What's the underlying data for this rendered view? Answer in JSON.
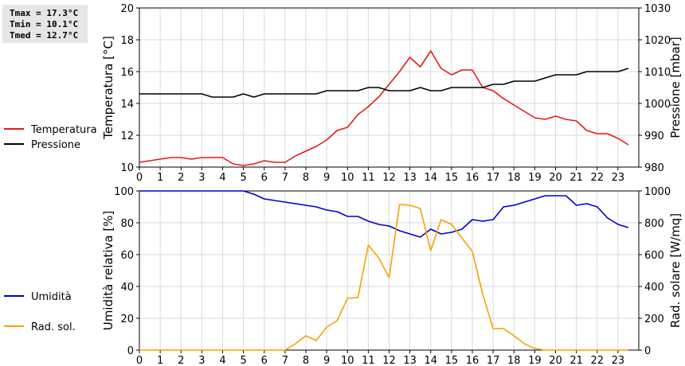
{
  "stats": {
    "tmax": "Tmax = 17.3°C",
    "tmin": "Tmin = 10.1°C",
    "tmed": "Tmed = 12.7°C"
  },
  "chart_data": [
    {
      "type": "line",
      "ylabel": "Temperatura [°C]",
      "y2label": "Pressione [mbar]",
      "xlim": [
        0,
        24
      ],
      "ylim": [
        10,
        20
      ],
      "y2lim": [
        980,
        1030
      ],
      "x_tick_labels": [
        "0",
        "1",
        "2",
        "3",
        "4",
        "5",
        "6",
        "7",
        "8",
        "9",
        "10",
        "11",
        "12",
        "13",
        "14",
        "15",
        "16",
        "17",
        "18",
        "19",
        "20",
        "21",
        "22",
        "23"
      ],
      "y_tick_labels": [
        "10",
        "12",
        "14",
        "16",
        "18",
        "20"
      ],
      "y2_tick_labels": [
        "980",
        "990",
        "1000",
        "1010",
        "1020",
        "1030"
      ],
      "grid": true,
      "legend": "left",
      "series": [
        {
          "name": "Temperatura",
          "axis": "left",
          "color": "#e31a1c",
          "x": [
            0,
            0.5,
            1,
            1.5,
            2,
            2.5,
            3,
            3.5,
            4,
            4.5,
            5,
            5.5,
            6,
            6.5,
            7,
            7.5,
            8,
            8.5,
            9,
            9.5,
            10,
            10.5,
            11,
            11.5,
            12,
            12.5,
            13,
            13.5,
            14,
            14.5,
            15,
            15.5,
            16,
            16.5,
            17,
            17.5,
            18,
            18.5,
            19,
            19.5,
            20,
            20.5,
            21,
            21.5,
            22,
            22.5,
            23,
            23.5
          ],
          "values": [
            10.3,
            10.4,
            10.5,
            10.6,
            10.6,
            10.5,
            10.6,
            10.6,
            10.6,
            10.2,
            10.1,
            10.2,
            10.4,
            10.3,
            10.3,
            10.7,
            11.0,
            11.3,
            11.7,
            12.3,
            12.5,
            13.3,
            13.8,
            14.4,
            15.2,
            16.0,
            16.9,
            16.3,
            17.3,
            16.2,
            15.8,
            16.1,
            16.1,
            15.0,
            14.8,
            14.3,
            13.9,
            13.5,
            13.1,
            13.0,
            13.2,
            13.0,
            12.9,
            12.3,
            12.1,
            12.1,
            11.8,
            11.4
          ]
        },
        {
          "name": "Pressione",
          "axis": "right",
          "color": "#000000",
          "x": [
            0,
            0.5,
            1,
            1.5,
            2,
            2.5,
            3,
            3.5,
            4,
            4.5,
            5,
            5.5,
            6,
            6.5,
            7,
            7.5,
            8,
            8.5,
            9,
            9.5,
            10,
            10.5,
            11,
            11.5,
            12,
            12.5,
            13,
            13.5,
            14,
            14.5,
            15,
            15.5,
            16,
            16.5,
            17,
            17.5,
            18,
            18.5,
            19,
            19.5,
            20,
            20.5,
            21,
            21.5,
            22,
            22.5,
            23,
            23.5
          ],
          "values": [
            1003,
            1003,
            1003,
            1003,
            1003,
            1003,
            1003,
            1002,
            1002,
            1002,
            1003,
            1002,
            1003,
            1003,
            1003,
            1003,
            1003,
            1003,
            1004,
            1004,
            1004,
            1004,
            1005,
            1005,
            1004,
            1004,
            1004,
            1005,
            1004,
            1004,
            1005,
            1005,
            1005,
            1005,
            1006,
            1006,
            1007,
            1007,
            1007,
            1008,
            1009,
            1009,
            1009,
            1010,
            1010,
            1010,
            1010,
            1011
          ]
        }
      ]
    },
    {
      "type": "line",
      "ylabel": "Umidità relativa [%]",
      "y2label": "Rad. solare [W/mq]",
      "xlim": [
        0,
        24
      ],
      "ylim": [
        0,
        100
      ],
      "y2lim": [
        0,
        1000
      ],
      "x_tick_labels": [
        "0",
        "1",
        "2",
        "3",
        "4",
        "5",
        "6",
        "7",
        "8",
        "9",
        "10",
        "11",
        "12",
        "13",
        "14",
        "15",
        "16",
        "17",
        "18",
        "19",
        "20",
        "21",
        "22",
        "23"
      ],
      "y_tick_labels": [
        "0",
        "20",
        "40",
        "60",
        "80",
        "100"
      ],
      "y2_tick_labels": [
        "0",
        "200",
        "400",
        "600",
        "800",
        "1000"
      ],
      "grid": true,
      "legend": "left",
      "series": [
        {
          "name": "Umidità",
          "axis": "left",
          "color": "#0000cc",
          "x": [
            0,
            0.5,
            1,
            1.5,
            2,
            2.5,
            3,
            3.5,
            4,
            4.5,
            5,
            5.5,
            6,
            6.5,
            7,
            7.5,
            8,
            8.5,
            9,
            9.5,
            10,
            10.5,
            11,
            11.5,
            12,
            12.5,
            13,
            13.5,
            14,
            14.5,
            15,
            15.5,
            16,
            16.5,
            17,
            17.5,
            18,
            18.5,
            19,
            19.5,
            20,
            20.5,
            21,
            21.5,
            22,
            22.5,
            23,
            23.5
          ],
          "values": [
            100,
            100,
            100,
            100,
            100,
            100,
            100,
            100,
            100,
            100,
            100,
            98,
            95,
            94,
            93,
            92,
            91,
            90,
            88,
            87,
            84,
            84,
            81,
            79,
            78,
            75,
            73,
            71,
            76,
            73,
            74,
            76,
            82,
            81,
            82,
            90,
            91,
            93,
            95,
            97,
            97,
            97,
            91,
            92,
            90,
            83,
            79,
            77
          ]
        },
        {
          "name": "Rad. sol.",
          "axis": "right",
          "color": "#f5a300",
          "x": [
            0,
            0.5,
            1,
            1.5,
            2,
            2.5,
            3,
            3.5,
            4,
            4.5,
            5,
            5.5,
            6,
            6.5,
            7,
            7.5,
            8,
            8.5,
            9,
            9.5,
            10,
            10.5,
            11,
            11.5,
            12,
            12.5,
            13,
            13.5,
            14,
            14.5,
            15,
            15.5,
            16,
            16.5,
            17,
            17.5,
            18,
            18.5,
            19,
            19.5,
            20,
            20.5,
            21,
            21.5,
            22,
            22.5,
            23,
            23.5
          ],
          "values": [
            0,
            0,
            0,
            0,
            0,
            0,
            0,
            0,
            0,
            0,
            0,
            0,
            0,
            0,
            0,
            40,
            90,
            60,
            145,
            185,
            325,
            330,
            660,
            580,
            455,
            915,
            910,
            890,
            625,
            820,
            790,
            705,
            620,
            350,
            135,
            135,
            90,
            40,
            10,
            0,
            0,
            0,
            0,
            0,
            0,
            0,
            0,
            0
          ]
        }
      ]
    }
  ]
}
